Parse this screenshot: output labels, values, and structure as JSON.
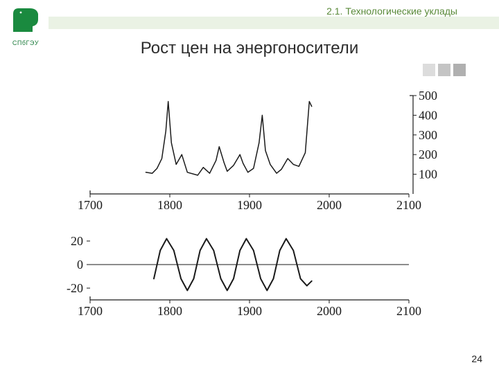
{
  "breadcrumb": "2.1. Технологические уклады",
  "breadcrumb_color": "#5a8a3a",
  "logo_text": "СПбГЭУ",
  "title": "Рост цен на энергоносители",
  "page_number": "24",
  "gray_block_colors": [
    "#dcdcdc",
    "#c4c4c4",
    "#b0b0b0"
  ],
  "chart_top": {
    "type": "line",
    "xlim": [
      1700,
      2100
    ],
    "ylim": [
      0,
      500
    ],
    "xticks": [
      1700,
      1800,
      1900,
      2000,
      2100
    ],
    "yticks": [
      100,
      200,
      300,
      400,
      500
    ],
    "yticks_side": "right",
    "line_color": "#1a1a1a",
    "line_width": 1.5,
    "axis_color": "#1a1a1a",
    "tick_font_size": 18,
    "series": [
      {
        "x": 1770,
        "y": 110
      },
      {
        "x": 1778,
        "y": 105
      },
      {
        "x": 1784,
        "y": 130
      },
      {
        "x": 1790,
        "y": 180
      },
      {
        "x": 1795,
        "y": 320
      },
      {
        "x": 1798,
        "y": 470
      },
      {
        "x": 1802,
        "y": 260
      },
      {
        "x": 1808,
        "y": 150
      },
      {
        "x": 1815,
        "y": 200
      },
      {
        "x": 1822,
        "y": 110
      },
      {
        "x": 1835,
        "y": 95
      },
      {
        "x": 1842,
        "y": 135
      },
      {
        "x": 1850,
        "y": 105
      },
      {
        "x": 1858,
        "y": 170
      },
      {
        "x": 1862,
        "y": 240
      },
      {
        "x": 1868,
        "y": 160
      },
      {
        "x": 1872,
        "y": 115
      },
      {
        "x": 1880,
        "y": 145
      },
      {
        "x": 1888,
        "y": 200
      },
      {
        "x": 1892,
        "y": 155
      },
      {
        "x": 1898,
        "y": 110
      },
      {
        "x": 1905,
        "y": 130
      },
      {
        "x": 1912,
        "y": 260
      },
      {
        "x": 1916,
        "y": 400
      },
      {
        "x": 1920,
        "y": 220
      },
      {
        "x": 1926,
        "y": 150
      },
      {
        "x": 1934,
        "y": 105
      },
      {
        "x": 1940,
        "y": 125
      },
      {
        "x": 1948,
        "y": 180
      },
      {
        "x": 1955,
        "y": 150
      },
      {
        "x": 1962,
        "y": 140
      },
      {
        "x": 1970,
        "y": 210
      },
      {
        "x": 1975,
        "y": 470
      },
      {
        "x": 1978,
        "y": 445
      }
    ]
  },
  "chart_bottom": {
    "type": "line",
    "xlim": [
      1700,
      2100
    ],
    "ylim": [
      -30,
      30
    ],
    "zero_line": 0,
    "xticks": [
      1700,
      1800,
      1900,
      2000,
      2100
    ],
    "yticks": [
      -20,
      0,
      20
    ],
    "yticks_side": "left",
    "line_color": "#1a1a1a",
    "line_width": 2,
    "axis_color": "#1a1a1a",
    "tick_font_size": 18,
    "series": [
      {
        "x": 1780,
        "y": -12
      },
      {
        "x": 1788,
        "y": 12
      },
      {
        "x": 1796,
        "y": 22
      },
      {
        "x": 1805,
        "y": 12
      },
      {
        "x": 1814,
        "y": -12
      },
      {
        "x": 1822,
        "y": -22
      },
      {
        "x": 1830,
        "y": -12
      },
      {
        "x": 1838,
        "y": 12
      },
      {
        "x": 1846,
        "y": 22
      },
      {
        "x": 1855,
        "y": 12
      },
      {
        "x": 1864,
        "y": -12
      },
      {
        "x": 1872,
        "y": -22
      },
      {
        "x": 1880,
        "y": -12
      },
      {
        "x": 1888,
        "y": 12
      },
      {
        "x": 1896,
        "y": 22
      },
      {
        "x": 1905,
        "y": 12
      },
      {
        "x": 1914,
        "y": -12
      },
      {
        "x": 1922,
        "y": -22
      },
      {
        "x": 1930,
        "y": -12
      },
      {
        "x": 1938,
        "y": 12
      },
      {
        "x": 1946,
        "y": 22
      },
      {
        "x": 1955,
        "y": 12
      },
      {
        "x": 1964,
        "y": -12
      },
      {
        "x": 1972,
        "y": -18
      },
      {
        "x": 1978,
        "y": -14
      }
    ]
  }
}
